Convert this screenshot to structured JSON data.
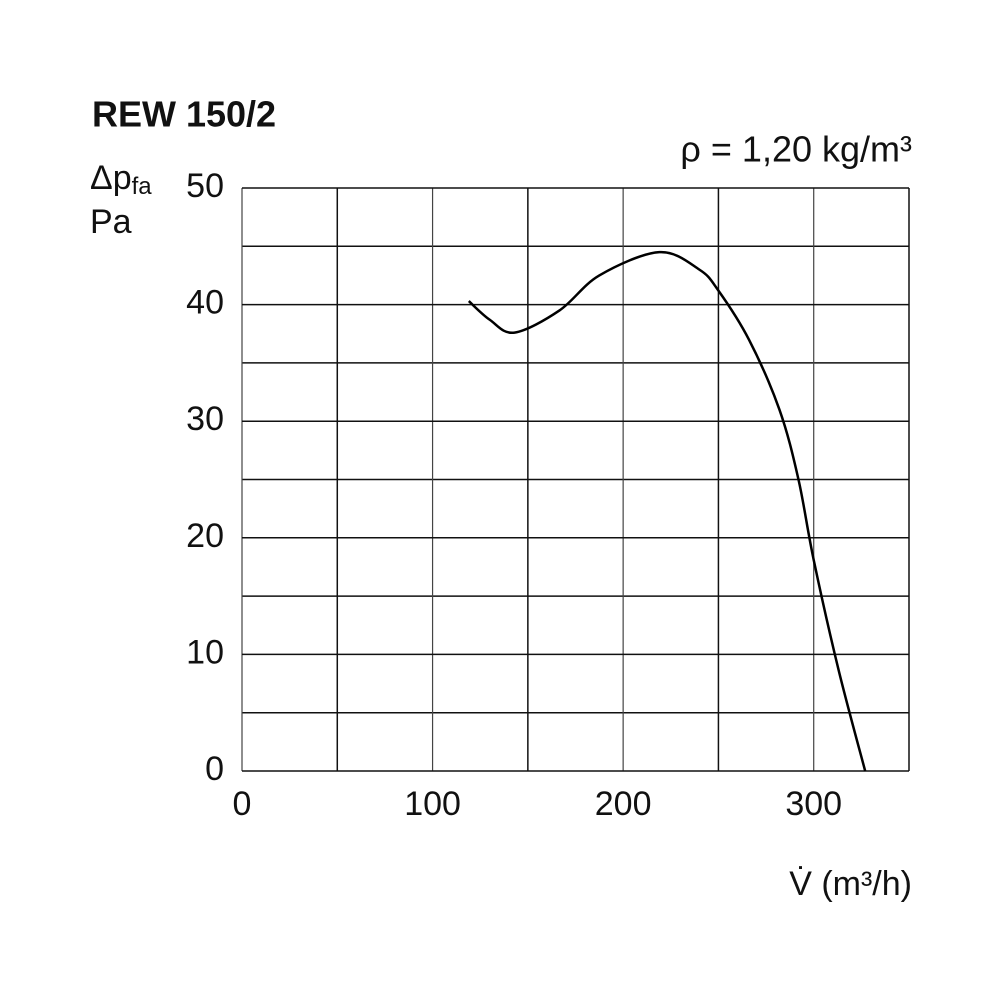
{
  "chart_data": {
    "type": "line",
    "title": "REW 150/2",
    "annotation": "ρ = 1,20 kg/m³",
    "y_label": {
      "symbol": "Δp",
      "subscript": "fa",
      "unit": "Pa"
    },
    "x_label": "V̇ (m³/h)",
    "x": [
      119,
      130,
      143,
      166.6,
      187.5,
      219,
      240,
      250,
      266,
      282,
      292,
      300,
      313,
      327
    ],
    "series": [
      {
        "color": "#000000",
        "values": [
          40.3,
          38.7,
          37.6,
          39.5,
          42.5,
          44.5,
          43.0,
          41.2,
          37.0,
          31.0,
          25.0,
          18.1,
          8.7,
          0
        ]
      }
    ],
    "xlim": [
      0,
      350
    ],
    "xticks": [
      0,
      100,
      200,
      300
    ],
    "xgrid": [
      50,
      150,
      250,
      350
    ],
    "ylim": [
      0,
      50
    ],
    "yticks": [
      0,
      10,
      20,
      30,
      40,
      50
    ],
    "ygrid": [
      5,
      15,
      25,
      35,
      45
    ],
    "grid": true
  }
}
